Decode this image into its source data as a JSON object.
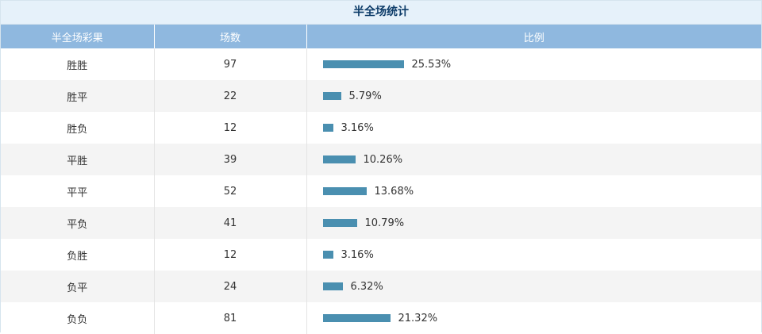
{
  "title": "半全场统计",
  "columns": [
    "半全场彩果",
    "场数",
    "比例"
  ],
  "bar_color": "#4a8fb0",
  "header_color": "#8fb8df",
  "title_bg_color": "#e6f1fa",
  "title_text_color": "#0d3c69",
  "rows": [
    {
      "result": "胜胜",
      "count": "97",
      "ratio": 25.53,
      "ratio_label": "25.53%"
    },
    {
      "result": "胜平",
      "count": "22",
      "ratio": 5.79,
      "ratio_label": "5.79%"
    },
    {
      "result": "胜负",
      "count": "12",
      "ratio": 3.16,
      "ratio_label": "3.16%"
    },
    {
      "result": "平胜",
      "count": "39",
      "ratio": 10.26,
      "ratio_label": "10.26%"
    },
    {
      "result": "平平",
      "count": "52",
      "ratio": 13.68,
      "ratio_label": "13.68%"
    },
    {
      "result": "平负",
      "count": "41",
      "ratio": 10.79,
      "ratio_label": "10.79%"
    },
    {
      "result": "负胜",
      "count": "12",
      "ratio": 3.16,
      "ratio_label": "3.16%"
    },
    {
      "result": "负平",
      "count": "24",
      "ratio": 6.32,
      "ratio_label": "6.32%"
    },
    {
      "result": "负负",
      "count": "81",
      "ratio": 21.32,
      "ratio_label": "21.32%"
    }
  ]
}
